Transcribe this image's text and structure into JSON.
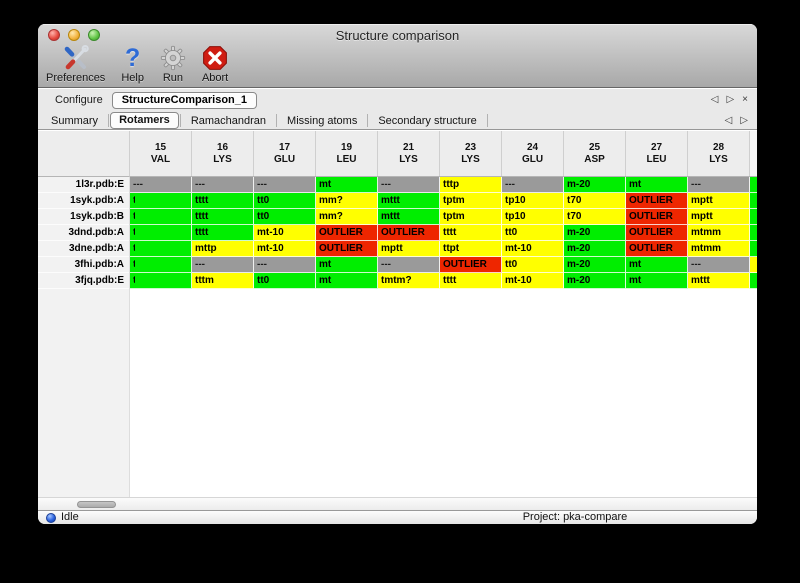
{
  "window": {
    "title": "Structure comparison"
  },
  "toolbar": {
    "items": [
      {
        "label": "Preferences",
        "icon": "tools-icon"
      },
      {
        "label": "Help",
        "icon": "question-icon"
      },
      {
        "label": "Run",
        "icon": "gear-icon"
      },
      {
        "label": "Abort",
        "icon": "stop-icon"
      }
    ]
  },
  "configure": {
    "label": "Configure",
    "active_config": "StructureComparison_1"
  },
  "tabs": {
    "items": [
      "Summary",
      "Rotamers",
      "Ramachandran",
      "Missing atoms",
      "Secondary structure"
    ],
    "active": "Rotamers"
  },
  "icons": {
    "prev": "◁",
    "next": "▷",
    "close": "×",
    "help_glyph": "?"
  },
  "legend_colors": {
    "favored": "#00ee00",
    "allowed": "#ffff00",
    "outlier": "#ee2600",
    "missing": "#9a9a9a"
  },
  "table": {
    "columns": [
      {
        "num": "15",
        "res": "VAL"
      },
      {
        "num": "16",
        "res": "LYS"
      },
      {
        "num": "17",
        "res": "GLU"
      },
      {
        "num": "19",
        "res": "LEU"
      },
      {
        "num": "21",
        "res": "LYS"
      },
      {
        "num": "23",
        "res": "LYS"
      },
      {
        "num": "24",
        "res": "GLU"
      },
      {
        "num": "25",
        "res": "ASP"
      },
      {
        "num": "27",
        "res": "LEU"
      },
      {
        "num": "28",
        "res": "LYS"
      }
    ],
    "rows": [
      {
        "label": "1l3r.pdb:E",
        "partial": "favored",
        "cells": [
          {
            "t": "---",
            "c": "missing"
          },
          {
            "t": "---",
            "c": "missing"
          },
          {
            "t": "---",
            "c": "missing"
          },
          {
            "t": "mt",
            "c": "favored"
          },
          {
            "t": "---",
            "c": "missing"
          },
          {
            "t": "tttp",
            "c": "allowed"
          },
          {
            "t": "---",
            "c": "missing"
          },
          {
            "t": "m-20",
            "c": "favored"
          },
          {
            "t": "mt",
            "c": "favored"
          },
          {
            "t": "---",
            "c": "missing"
          }
        ]
      },
      {
        "label": "1syk.pdb:A",
        "partial": "favored",
        "cells": [
          {
            "t": "t",
            "c": "favored",
            "clip": true
          },
          {
            "t": "tttt",
            "c": "favored"
          },
          {
            "t": "tt0",
            "c": "favored"
          },
          {
            "t": "mm?",
            "c": "allowed"
          },
          {
            "t": "mttt",
            "c": "favored"
          },
          {
            "t": "tptm",
            "c": "allowed"
          },
          {
            "t": "tp10",
            "c": "allowed"
          },
          {
            "t": "t70",
            "c": "allowed"
          },
          {
            "t": "OUTLIER",
            "c": "outlier"
          },
          {
            "t": "mptt",
            "c": "allowed"
          }
        ]
      },
      {
        "label": "1syk.pdb:B",
        "partial": "favored",
        "cells": [
          {
            "t": "t",
            "c": "favored",
            "clip": true
          },
          {
            "t": "tttt",
            "c": "favored"
          },
          {
            "t": "tt0",
            "c": "favored"
          },
          {
            "t": "mm?",
            "c": "allowed"
          },
          {
            "t": "mttt",
            "c": "favored"
          },
          {
            "t": "tptm",
            "c": "allowed"
          },
          {
            "t": "tp10",
            "c": "allowed"
          },
          {
            "t": "t70",
            "c": "allowed"
          },
          {
            "t": "OUTLIER",
            "c": "outlier"
          },
          {
            "t": "mptt",
            "c": "allowed"
          }
        ]
      },
      {
        "label": "3dnd.pdb:A",
        "partial": "favored",
        "cells": [
          {
            "t": "t",
            "c": "favored",
            "clip": true
          },
          {
            "t": "tttt",
            "c": "favored"
          },
          {
            "t": "mt-10",
            "c": "allowed"
          },
          {
            "t": "OUTLIER",
            "c": "outlier"
          },
          {
            "t": "OUTLIER",
            "c": "outlier"
          },
          {
            "t": "tttt",
            "c": "allowed"
          },
          {
            "t": "tt0",
            "c": "allowed"
          },
          {
            "t": "m-20",
            "c": "favored"
          },
          {
            "t": "OUTLIER",
            "c": "outlier"
          },
          {
            "t": "mtmm",
            "c": "allowed"
          }
        ]
      },
      {
        "label": "3dne.pdb:A",
        "partial": "favored",
        "cells": [
          {
            "t": "t",
            "c": "favored",
            "clip": true
          },
          {
            "t": "mttp",
            "c": "allowed"
          },
          {
            "t": "mt-10",
            "c": "allowed"
          },
          {
            "t": "OUTLIER",
            "c": "outlier"
          },
          {
            "t": "mptt",
            "c": "allowed"
          },
          {
            "t": "ttpt",
            "c": "allowed"
          },
          {
            "t": "mt-10",
            "c": "allowed"
          },
          {
            "t": "m-20",
            "c": "favored"
          },
          {
            "t": "OUTLIER",
            "c": "outlier"
          },
          {
            "t": "mtmm",
            "c": "allowed"
          }
        ]
      },
      {
        "label": "3fhi.pdb:A",
        "partial": "allowed",
        "cells": [
          {
            "t": "t",
            "c": "favored",
            "clip": true
          },
          {
            "t": "---",
            "c": "missing"
          },
          {
            "t": "---",
            "c": "missing"
          },
          {
            "t": "mt",
            "c": "favored"
          },
          {
            "t": "---",
            "c": "missing"
          },
          {
            "t": "OUTLIER",
            "c": "outlier"
          },
          {
            "t": "tt0",
            "c": "allowed"
          },
          {
            "t": "m-20",
            "c": "favored"
          },
          {
            "t": "mt",
            "c": "favored"
          },
          {
            "t": "---",
            "c": "missing"
          }
        ]
      },
      {
        "label": "3fjq.pdb:E",
        "partial": "favored",
        "cells": [
          {
            "t": "t",
            "c": "favored",
            "clip": true
          },
          {
            "t": "tttm",
            "c": "allowed"
          },
          {
            "t": "tt0",
            "c": "favored"
          },
          {
            "t": "mt",
            "c": "favored"
          },
          {
            "t": "tmtm?",
            "c": "allowed"
          },
          {
            "t": "tttt",
            "c": "allowed"
          },
          {
            "t": "mt-10",
            "c": "allowed"
          },
          {
            "t": "m-20",
            "c": "favored"
          },
          {
            "t": "mt",
            "c": "favored"
          },
          {
            "t": "mttt",
            "c": "allowed"
          }
        ]
      }
    ]
  },
  "status_bar": {
    "state": "Idle",
    "project_label": "Project: pka-compare"
  }
}
